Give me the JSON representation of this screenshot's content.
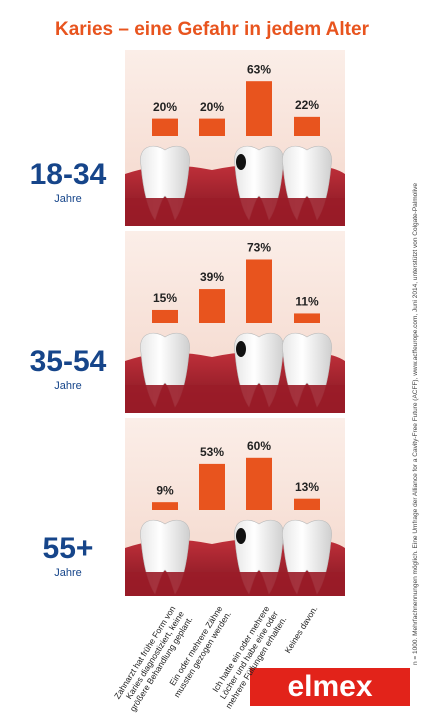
{
  "title": "Karies – eine Gefahr in jedem Alter",
  "chart_data": [
    {
      "type": "bar",
      "title": "18-34",
      "subtitle": "Jahre",
      "color": "#e8541e",
      "values": [
        20,
        20,
        63,
        22
      ],
      "value_labels": [
        "20%",
        "20%",
        "63%",
        "22%"
      ]
    },
    {
      "type": "bar",
      "title": "35-54",
      "subtitle": "Jahre",
      "color": "#e8541e",
      "values": [
        15,
        39,
        73,
        11
      ],
      "value_labels": [
        "15%",
        "39%",
        "73%",
        "11%"
      ]
    },
    {
      "type": "bar",
      "title": "55+",
      "subtitle": "Jahre",
      "color": "#e8541e",
      "values": [
        9,
        53,
        60,
        13
      ],
      "value_labels": [
        "9%",
        "53%",
        "60%",
        "13%"
      ],
      "categories": [
        "Zahnarzt hat frühe Form von Karies diagnostiziert, keine größere Behandlung geplant.",
        "Ein oder mehrere Zähne mussten gezogen werden.",
        "Ich hatte ein oder mehrere Löcher und habe eine oder mehrere Füllungen erhalten.",
        "Keines davon."
      ]
    }
  ],
  "footnote": "n = 1000. Mehrfachnennungen möglich. Eine Umfrage der Alliance for a Cavity-Free Future (ACFF), www.acffeurope.com, Juni 2014, unterstützt von Colgate-Palmolive",
  "brand": "elmex"
}
